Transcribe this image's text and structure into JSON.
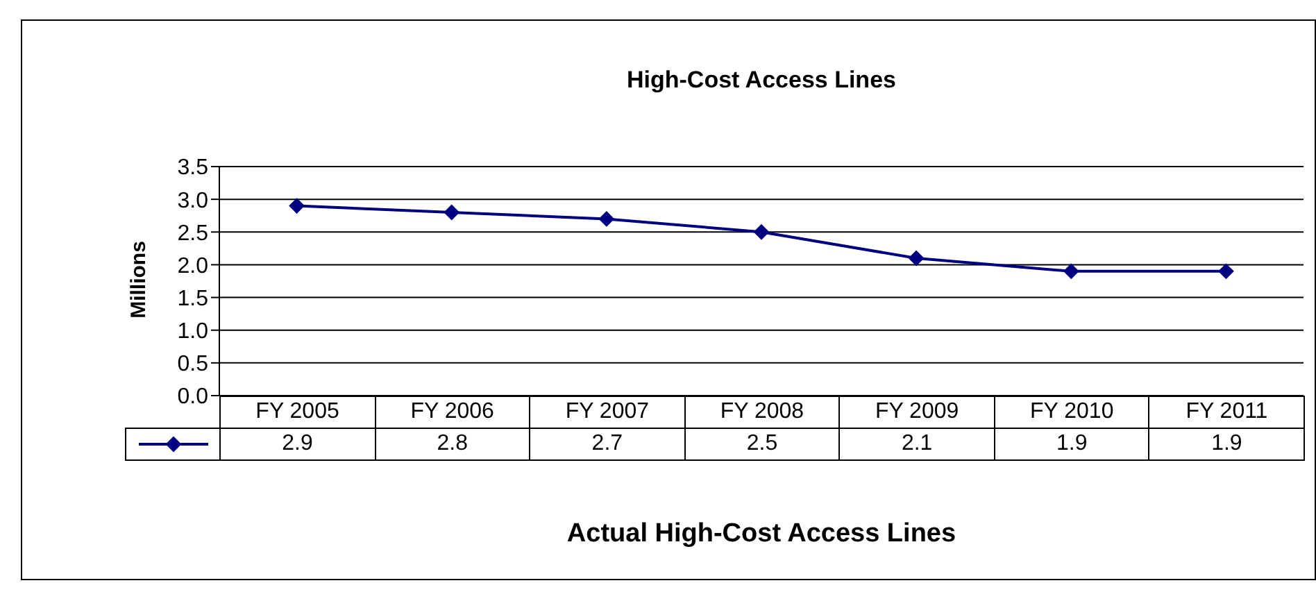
{
  "chart_data": {
    "type": "line",
    "title": "High-Cost Access Lines",
    "xlabel": "Actual High-Cost Access Lines",
    "ylabel": "Millions",
    "categories": [
      "FY 2005",
      "FY 2006",
      "FY 2007",
      "FY 2008",
      "FY 2009",
      "FY 2010",
      "FY 2011"
    ],
    "series": [
      {
        "color": "#000080",
        "values": [
          2.9,
          2.8,
          2.7,
          2.5,
          2.1,
          1.9,
          1.9
        ]
      }
    ],
    "ylim": [
      0,
      3.5
    ],
    "yticks": [
      "0.0",
      "0.5",
      "1.0",
      "1.5",
      "2.0",
      "2.5",
      "3.0",
      "3.5"
    ],
    "grid": "y",
    "marker": "diamond",
    "line_style": "solid",
    "data_labels": true
  }
}
